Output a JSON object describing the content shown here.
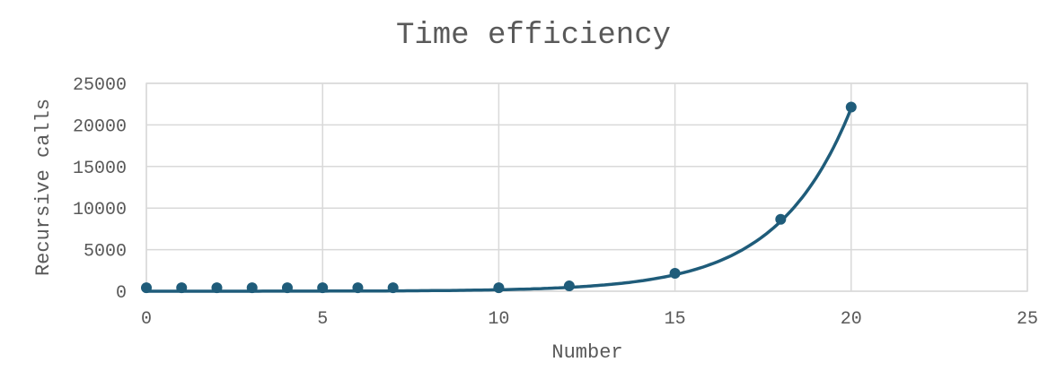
{
  "chart_data": {
    "type": "scatter",
    "title": "Time efficiency",
    "xlabel": "Number",
    "ylabel": "Recursive calls",
    "xlim": [
      0,
      25
    ],
    "ylim": [
      0,
      25000
    ],
    "xticks": [
      0,
      5,
      10,
      15,
      20,
      25
    ],
    "yticks": [
      0,
      5000,
      10000,
      15000,
      20000,
      25000
    ],
    "grid": true,
    "trendline": "smoothed",
    "series": [
      {
        "color": "#1f5c7a",
        "x": [
          0,
          1,
          2,
          3,
          4,
          5,
          6,
          7,
          10,
          12,
          15,
          18,
          20
        ],
        "y": [
          420,
          420,
          420,
          420,
          420,
          420,
          420,
          420,
          420,
          640,
          2150,
          8650,
          22150
        ]
      }
    ]
  }
}
